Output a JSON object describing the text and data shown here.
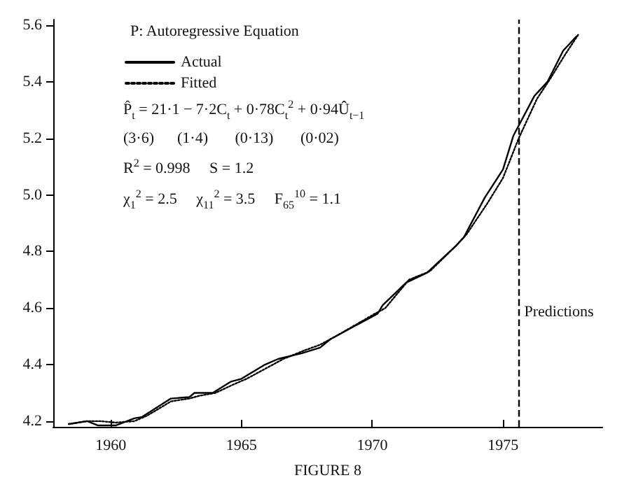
{
  "chart_data": {
    "type": "line",
    "title": "P: Autoregressive Equation",
    "xlabel": "FIGURE 8",
    "annotations": [
      "P̂$_{t}$ = 21·1 − 7·2C$_{t}$ + 0·78C$_{t}$$^{2}$ + 0·94Û$_{t−1}$",
      "(3·6)      (1·4)       (0·13)       (0·02)",
      "R$^{2}$ = 0.998     S = 1.2",
      "χ$_{1}$$^{2}$ = 2.5     χ$_{11}$$^{2}$ = 3.5     F$_{65}$$^{10}$ = 1.1"
    ],
    "series": [
      {
        "name": "Actual",
        "color": "#000000",
        "line_style": "solid",
        "x": [
          1958.4,
          1959.1,
          1959.5,
          1960.2,
          1960.9,
          1961.2,
          1962.3,
          1963.0,
          1963.2,
          1963.9,
          1964.6,
          1965.0,
          1965.9,
          1966.4,
          1967.3,
          1968.0,
          1968.4,
          1970.2,
          1970.4,
          1971.3,
          1972.1,
          1973.2,
          1973.5,
          1974.3,
          1975.0,
          1975.4,
          1976.2,
          1976.7,
          1977.3,
          1977.8
        ],
        "values": [
          4.19,
          4.2,
          4.185,
          4.185,
          4.21,
          4.215,
          4.28,
          4.285,
          4.3,
          4.3,
          4.34,
          4.35,
          4.4,
          4.42,
          4.44,
          4.46,
          4.49,
          4.58,
          4.61,
          4.69,
          4.725,
          4.82,
          4.85,
          4.99,
          5.09,
          5.21,
          5.35,
          5.4,
          5.51,
          5.56
        ]
      },
      {
        "name": "Fitted",
        "color": "#000000",
        "line_style": "dotted",
        "x": [
          1958.4,
          1959.1,
          1959.6,
          1960.2,
          1960.9,
          1961.4,
          1962.3,
          1963.0,
          1963.4,
          1964.0,
          1964.7,
          1965.2,
          1966.0,
          1966.6,
          1967.4,
          1968.0,
          1968.6,
          1970.1,
          1970.5,
          1971.4,
          1972.2,
          1973.2,
          1973.6,
          1974.4,
          1975.0,
          1975.6,
          1976.3,
          1976.8,
          1977.4,
          1977.9
        ],
        "values": [
          4.19,
          4.2,
          4.2,
          4.195,
          4.2,
          4.22,
          4.27,
          4.28,
          4.29,
          4.3,
          4.33,
          4.35,
          4.39,
          4.42,
          4.45,
          4.47,
          4.5,
          4.58,
          4.6,
          4.7,
          4.73,
          4.82,
          4.86,
          4.97,
          5.06,
          5.2,
          5.34,
          5.41,
          5.5,
          5.57
        ]
      }
    ],
    "xlim": [
      1957.8,
      1978.8
    ],
    "xticks": [
      1960,
      1965,
      1970,
      1975
    ],
    "ylim": [
      4.18,
      5.62
    ],
    "yticks": [
      {
        "value": 4.2,
        "label": "4.2"
      },
      {
        "value": 4.4,
        "label": "4.4"
      },
      {
        "value": 4.6,
        "label": "4.6"
      },
      {
        "value": 4.8,
        "label": "4.8"
      },
      {
        "value": 5.0,
        "label": "5.0"
      },
      {
        "value": 5.2,
        "label": "5.2"
      },
      {
        "value": 5.4,
        "label": "5.4"
      },
      {
        "value": 5.6,
        "label": "5.6"
      }
    ],
    "ref_lines": [
      {
        "axis": "x",
        "value": 1975.6,
        "label": "Predictions",
        "line_style": "dashed"
      }
    ],
    "grid": false,
    "legend": "top left",
    "marker": "none"
  }
}
